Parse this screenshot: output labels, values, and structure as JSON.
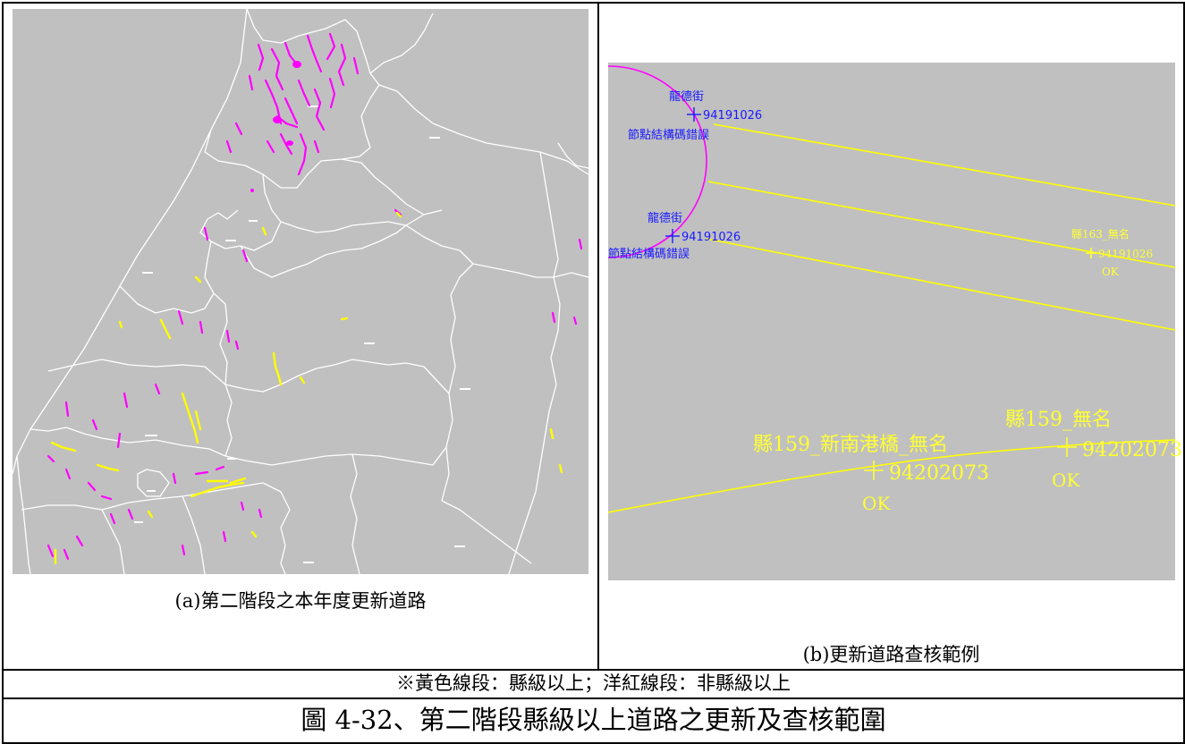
{
  "figure": {
    "panel_a": {
      "caption": "(a)第二階段之本年度更新道路"
    },
    "panel_b": {
      "caption": "(b)更新道路查核範例",
      "labels": {
        "street_1": "龍德街",
        "node_1": "94191026",
        "error_1": "節點結構碼錯誤",
        "street_2": "龍德街",
        "node_2": "94191026",
        "error_2": "節點結構碼錯誤",
        "road_163": "縣163_無名",
        "node_163": "94191026",
        "ok_163": "OK",
        "road_159a": "縣159_新南港橋_無名",
        "node_159a": "94202073",
        "ok_159a": "OK",
        "road_159b": "縣159_無名",
        "node_159b": "94202073",
        "ok_159b": "OK"
      }
    },
    "note": "※黃色線段：縣級以上；洋紅線段：非縣級以上",
    "title": "圖 4-32、第二階段縣級以上道路之更新及查核範圍"
  },
  "colors": {
    "map_background": "#c0c0c0",
    "boundary": "#ffffff",
    "county_road": "#ffff00",
    "non_county_road": "#ff00ff",
    "label_blue": "#1a1aff"
  }
}
